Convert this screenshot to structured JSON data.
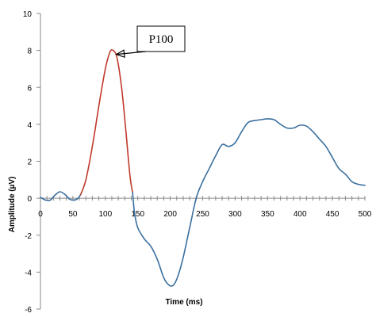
{
  "chart_data": {
    "type": "line",
    "title": "",
    "xlabel": "Time (ms)",
    "ylabel": "Amplitude (µV)",
    "xlim": [
      0,
      500
    ],
    "ylim": [
      -6,
      10
    ],
    "x_ticks": [
      0,
      50,
      100,
      150,
      200,
      250,
      300,
      350,
      400,
      450,
      500
    ],
    "y_ticks": [
      -6,
      -4,
      -2,
      0,
      2,
      4,
      6,
      8,
      10
    ],
    "grid": false,
    "legend": "none",
    "series": [
      {
        "color": "#3a6f9f",
        "x": [
          0,
          8,
          15,
          22,
          30,
          38,
          45,
          52,
          58,
          62
        ],
        "y": [
          0.05,
          -0.1,
          -0.1,
          0.15,
          0.35,
          0.2,
          -0.05,
          -0.1,
          0.0,
          0.2
        ]
      },
      {
        "color": "#c0392b",
        "x": [
          62,
          70,
          80,
          90,
          100,
          107,
          112,
          118,
          125,
          132,
          138,
          142
        ],
        "y": [
          0.2,
          1.0,
          2.8,
          5.0,
          7.0,
          7.9,
          8.0,
          7.6,
          6.0,
          3.5,
          1.2,
          0.3
        ]
      },
      {
        "color": "#3a6f9f",
        "x": [
          142,
          145,
          150,
          160,
          170,
          180,
          190,
          198,
          205,
          212,
          220,
          230,
          240,
          250,
          260,
          270,
          280,
          290,
          300,
          310,
          320,
          330,
          340,
          350,
          360,
          370,
          380,
          390,
          400,
          410,
          420,
          430,
          440,
          450,
          460,
          470,
          480,
          490,
          500
        ],
        "y": [
          0.3,
          -0.8,
          -1.6,
          -2.2,
          -2.6,
          -3.3,
          -4.3,
          -4.7,
          -4.7,
          -4.2,
          -3.2,
          -1.6,
          0.0,
          0.9,
          1.6,
          2.3,
          2.9,
          2.8,
          3.0,
          3.6,
          4.1,
          4.2,
          4.25,
          4.3,
          4.25,
          4.0,
          3.8,
          3.8,
          3.95,
          3.9,
          3.6,
          3.2,
          2.8,
          2.2,
          1.6,
          1.3,
          0.9,
          0.75,
          0.7
        ]
      }
    ],
    "annotations": [
      {
        "text": "P100",
        "target": [
          112,
          8.0
        ]
      }
    ]
  }
}
